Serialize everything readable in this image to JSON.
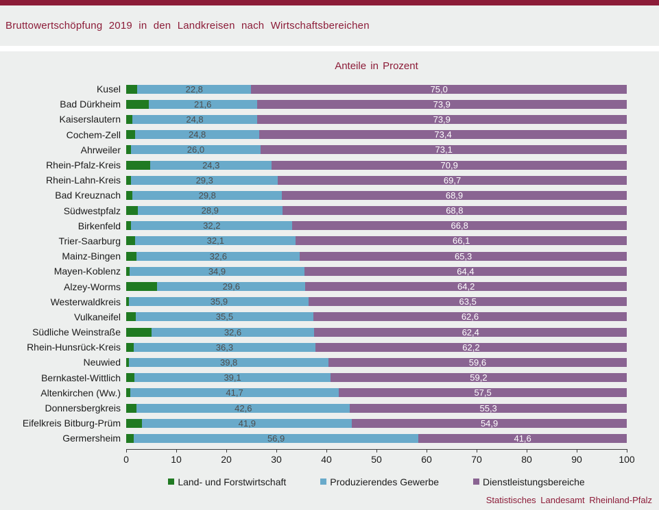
{
  "page": {
    "title": "Bruttowertschöpfung 2019 in den Landkreisen nach Wirtschaftsbereichen",
    "subtitle": "Anteile in Prozent",
    "footer": "Statistisches Landesamt Rheinland-Pfalz",
    "accent_color": "#8C1C38",
    "background_color": "#EDEFEE"
  },
  "chart_data": {
    "type": "bar",
    "orientation": "horizontal",
    "stacked": true,
    "title": "Bruttowertschöpfung 2019 in den Landkreisen nach Wirtschaftsbereichen",
    "subtitle": "Anteile in Prozent",
    "xlabel": "",
    "ylabel": "",
    "xlim": [
      0,
      100
    ],
    "x_ticks": [
      0,
      10,
      20,
      30,
      40,
      50,
      60,
      70,
      80,
      90,
      100
    ],
    "grid": false,
    "legend_position": "bottom",
    "categories": [
      "Kusel",
      "Bad Dürkheim",
      "Kaiserslautern",
      "Cochem-Zell",
      "Ahrweiler",
      "Rhein-Pfalz-Kreis",
      "Rhein-Lahn-Kreis",
      "Bad Kreuznach",
      "Südwestpfalz",
      "Birkenfeld",
      "Trier-Saarburg",
      "Mainz-Bingen",
      "Mayen-Koblenz",
      "Alzey-Worms",
      "Westerwaldkreis",
      "Vulkaneifel",
      "Südliche Weinstraße",
      "Rhein-Hunsrück-Kreis",
      "Neuwied",
      "Bernkastel-Wittlich",
      "Altenkirchen (Ww.)",
      "Donnersbergkreis",
      "Eifelkreis Bitburg-Prüm",
      "Germersheim"
    ],
    "series": [
      {
        "name": "Land- und Forstwirtschaft",
        "color": "#207A22",
        "values": [
          2.2,
          4.5,
          1.3,
          1.8,
          0.9,
          4.8,
          1.0,
          1.3,
          2.3,
          1.0,
          1.8,
          2.1,
          0.7,
          6.2,
          0.6,
          1.9,
          5.0,
          1.5,
          0.6,
          1.7,
          0.8,
          2.1,
          3.2,
          1.5
        ],
        "labels": null,
        "label_color": null
      },
      {
        "name": "Produzierendes Gewerbe",
        "color": "#69AACA",
        "values": [
          22.8,
          21.6,
          24.8,
          24.8,
          26.0,
          24.3,
          29.3,
          29.8,
          28.9,
          32.2,
          32.1,
          32.6,
          34.9,
          29.6,
          35.9,
          35.5,
          32.6,
          36.3,
          39.8,
          39.1,
          41.7,
          42.6,
          41.9,
          56.9
        ],
        "labels": [
          "22,8",
          "21,6",
          "24,8",
          "24,8",
          "26,0",
          "24,3",
          "29,3",
          "29,8",
          "28,9",
          "32,2",
          "32,1",
          "32,6",
          "34,9",
          "29,6",
          "35,9",
          "35,5",
          "32,6",
          "36,3",
          "39,8",
          "39,1",
          "41,7",
          "42,6",
          "41,9",
          "56,9"
        ],
        "label_color": "#4D4D4D"
      },
      {
        "name": "Dienstleistungsbereiche",
        "color": "#8A6492",
        "values": [
          75.0,
          73.9,
          73.9,
          73.4,
          73.1,
          70.9,
          69.7,
          68.9,
          68.8,
          66.8,
          66.1,
          65.3,
          64.4,
          64.2,
          63.5,
          62.6,
          62.4,
          62.2,
          59.6,
          59.2,
          57.5,
          55.3,
          54.9,
          41.6
        ],
        "labels": [
          "75,0",
          "73,9",
          "73,9",
          "73,4",
          "73,1",
          "70,9",
          "69,7",
          "68,9",
          "68,8",
          "66,8",
          "66,1",
          "65,3",
          "64,4",
          "64,2",
          "63,5",
          "62,6",
          "62,4",
          "62,2",
          "59,6",
          "59,2",
          "57,5",
          "55,3",
          "54,9",
          "41,6"
        ],
        "label_color": "#FFFFFF"
      }
    ]
  }
}
